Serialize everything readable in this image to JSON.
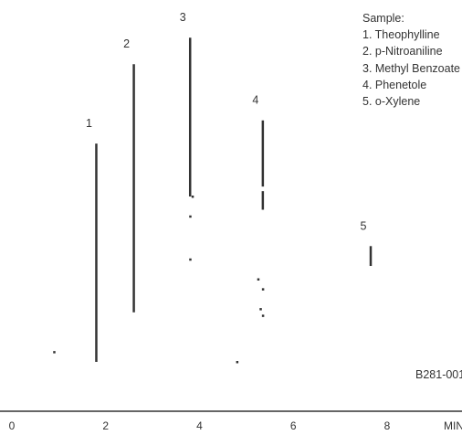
{
  "chart_data": {
    "type": "chromatogram",
    "x_unit_label": "MIN",
    "x_ticks": [
      0,
      2,
      4,
      6,
      8
    ],
    "xlim": [
      0,
      8.8
    ],
    "peaks": [
      {
        "label": "1",
        "retention_min": 1.8,
        "top": 0.66,
        "base": 0.0
      },
      {
        "label": "2",
        "retention_min": 2.6,
        "top": 0.9,
        "base": 0.15
      },
      {
        "label": "3",
        "retention_min": 3.8,
        "top": 0.98,
        "base": 0.5
      },
      {
        "label": "4",
        "retention_min": 5.35,
        "top": 0.73,
        "base": 0.46
      },
      {
        "label": "5",
        "retention_min": 7.65,
        "top": 0.35,
        "base": 0.29
      }
    ],
    "legend": {
      "title": "Sample:",
      "items": [
        "1. Theophylline",
        "2. p-Nitroaniline",
        "3. Methyl Benzoate",
        "4. Phenetole",
        "5. o-Xylene"
      ]
    },
    "figure_code": "B281-001",
    "colors": {
      "trace": "#333333"
    }
  }
}
